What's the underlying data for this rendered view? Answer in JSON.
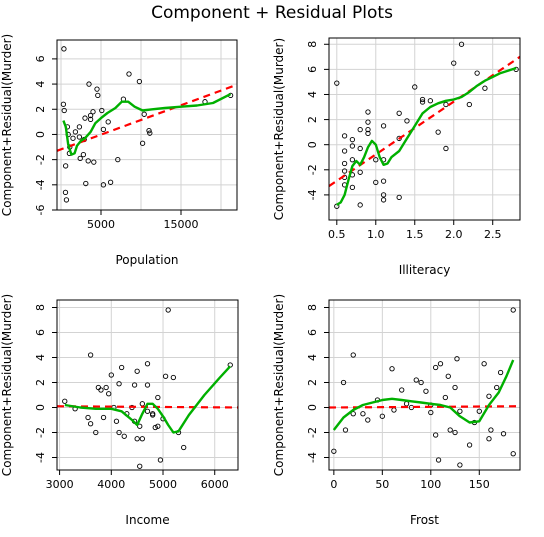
{
  "figure": {
    "title": "Component + Residual Plots"
  },
  "colors": {
    "background": "#ffffff",
    "points": "#000000",
    "grid": "#d3d3d3",
    "fit_line": "#ff0000",
    "smooth_line": "#00b000"
  },
  "chart_data": [
    {
      "type": "scatter",
      "xlabel": "Population",
      "ylabel": "Component+Residual(Murder)",
      "xlim": [
        -500,
        22000
      ],
      "ylim": [
        -6,
        7.5
      ],
      "xticks": [
        5000,
        15000
      ],
      "xtick_labels": [
        "5000",
        "15000"
      ],
      "xgrid": [
        0,
        5000,
        10000,
        15000,
        20000
      ],
      "yticks": [
        -6,
        -4,
        -2,
        0,
        2,
        4,
        6
      ],
      "ytick_labels": [
        "-6",
        "-4",
        "-2",
        "0",
        "2",
        "4",
        "6"
      ],
      "grid": true,
      "points": [
        [
          365,
          6.8
        ],
        [
          560,
          -4.6
        ],
        [
          680,
          -5.2
        ],
        [
          300,
          2.4
        ],
        [
          400,
          1.9
        ],
        [
          800,
          0.6
        ],
        [
          900,
          0.0
        ],
        [
          1100,
          -1.0
        ],
        [
          580,
          -2.5
        ],
        [
          1500,
          -0.3
        ],
        [
          1800,
          0.2
        ],
        [
          1050,
          -1.5
        ],
        [
          2300,
          -0.2
        ],
        [
          2400,
          -1.9
        ],
        [
          2800,
          -1.6
        ],
        [
          2300,
          0.6
        ],
        [
          3000,
          1.3
        ],
        [
          3100,
          -3.9
        ],
        [
          3400,
          -2.1
        ],
        [
          3700,
          1.2
        ],
        [
          2900,
          -0.4
        ],
        [
          3500,
          4.0
        ],
        [
          3700,
          1.5
        ],
        [
          4100,
          -2.2
        ],
        [
          4500,
          3.6
        ],
        [
          4600,
          3.1
        ],
        [
          4000,
          1.8
        ],
        [
          5100,
          1.9
        ],
        [
          5300,
          -4.0
        ],
        [
          5900,
          1.0
        ],
        [
          5300,
          0.4
        ],
        [
          6200,
          -3.8
        ],
        [
          7100,
          -2.0
        ],
        [
          7800,
          2.8
        ],
        [
          8500,
          4.8
        ],
        [
          10200,
          -0.7
        ],
        [
          10400,
          1.6
        ],
        [
          11000,
          0.3
        ],
        [
          11100,
          0.1
        ],
        [
          9800,
          4.2
        ],
        [
          18000,
          2.6
        ],
        [
          21200,
          3.1
        ]
      ],
      "fit": {
        "x": [
          -500,
          22000
        ],
        "y": [
          -1.3,
          3.95
        ]
      },
      "smooth": {
        "x": [
          300,
          600,
          900,
          1300,
          1700,
          2000,
          2500,
          3000,
          3700,
          4300,
          5000,
          5800,
          6800,
          7600,
          8400,
          9200,
          10200,
          11400,
          13000,
          15000,
          17000,
          19000,
          21200
        ],
        "y": [
          1.1,
          0.6,
          -0.8,
          -1.6,
          -1.5,
          -0.9,
          -0.5,
          -0.3,
          0.2,
          0.9,
          1.3,
          1.7,
          2.1,
          2.6,
          2.6,
          2.2,
          1.9,
          2.0,
          2.1,
          2.2,
          2.3,
          2.5,
          3.2
        ]
      }
    },
    {
      "type": "scatter",
      "xlabel": "Illiteracy",
      "ylabel": "Component+Residual(Murder)",
      "xlim": [
        0.4,
        2.85
      ],
      "ylim": [
        -6,
        8.5
      ],
      "xticks": [
        0.5,
        1.0,
        1.5,
        2.0,
        2.5
      ],
      "xtick_labels": [
        "0.5",
        "1.0",
        "1.5",
        "2.0",
        "2.5"
      ],
      "xgrid": [
        0.5,
        1.0,
        1.5,
        2.0,
        2.5
      ],
      "yticks": [
        -4,
        -2,
        0,
        2,
        4,
        6,
        8
      ],
      "ytick_labels": [
        "-4",
        "-2",
        "0",
        "2",
        "4",
        "6",
        "8"
      ],
      "grid": true,
      "points": [
        [
          0.5,
          4.9
        ],
        [
          0.5,
          -4.9
        ],
        [
          0.6,
          0.7
        ],
        [
          0.6,
          -0.5
        ],
        [
          0.6,
          -1.5
        ],
        [
          0.6,
          -2.1
        ],
        [
          0.6,
          -2.6
        ],
        [
          0.6,
          -3.2
        ],
        [
          0.7,
          0.4
        ],
        [
          0.7,
          -0.1
        ],
        [
          0.7,
          -1.2
        ],
        [
          0.7,
          -2.4
        ],
        [
          0.7,
          -3.4
        ],
        [
          0.8,
          1.2
        ],
        [
          0.8,
          -0.3
        ],
        [
          0.8,
          -2.2
        ],
        [
          0.8,
          -4.8
        ],
        [
          0.9,
          1.8
        ],
        [
          0.9,
          2.6
        ],
        [
          0.9,
          1.2
        ],
        [
          0.9,
          0.9
        ],
        [
          1.0,
          -1.2
        ],
        [
          1.0,
          -3.0
        ],
        [
          1.1,
          1.5
        ],
        [
          1.1,
          -1.2
        ],
        [
          1.1,
          -4.0
        ],
        [
          1.1,
          -4.4
        ],
        [
          1.1,
          -2.9
        ],
        [
          1.3,
          0.5
        ],
        [
          1.3,
          -4.2
        ],
        [
          1.3,
          2.5
        ],
        [
          1.4,
          1.9
        ],
        [
          1.5,
          4.6
        ],
        [
          1.6,
          3.6
        ],
        [
          1.6,
          3.4
        ],
        [
          1.7,
          3.5
        ],
        [
          1.8,
          1.0
        ],
        [
          1.9,
          -0.3
        ],
        [
          1.9,
          3.2
        ],
        [
          2.0,
          6.5
        ],
        [
          2.1,
          8.0
        ],
        [
          2.2,
          3.2
        ],
        [
          2.3,
          5.7
        ],
        [
          2.4,
          4.5
        ],
        [
          2.8,
          6.0
        ]
      ],
      "fit": {
        "x": [
          0.4,
          2.85
        ],
        "y": [
          -3.3,
          7.0
        ]
      },
      "smooth": {
        "x": [
          0.5,
          0.55,
          0.6,
          0.65,
          0.7,
          0.75,
          0.8,
          0.85,
          0.9,
          0.95,
          1.0,
          1.05,
          1.1,
          1.15,
          1.2,
          1.3,
          1.4,
          1.5,
          1.6,
          1.7,
          1.8,
          1.9,
          2.0,
          2.1,
          2.2,
          2.3,
          2.4,
          2.5,
          2.6,
          2.7,
          2.8
        ],
        "y": [
          -4.8,
          -4.6,
          -4.0,
          -2.8,
          -1.7,
          -1.3,
          -1.6,
          -1.0,
          -0.2,
          0.3,
          0.0,
          -1.0,
          -1.6,
          -1.5,
          -1.0,
          -0.5,
          0.5,
          1.5,
          2.5,
          3.0,
          3.3,
          3.5,
          3.6,
          3.8,
          4.2,
          4.7,
          5.1,
          5.4,
          5.7,
          5.9,
          6.1
        ]
      }
    },
    {
      "type": "scatter",
      "xlabel": "Income",
      "ylabel": "Component+Residual(Murder)",
      "xlim": [
        2950,
        6450
      ],
      "ylim": [
        -5,
        8.6
      ],
      "xticks": [
        3000,
        4000,
        5000,
        6000
      ],
      "xtick_labels": [
        "3000",
        "4000",
        "5000",
        "6000"
      ],
      "xgrid": [
        3000,
        4000,
        5000,
        6000
      ],
      "yticks": [
        -4,
        -2,
        0,
        2,
        4,
        6,
        8
      ],
      "ytick_labels": [
        "-4",
        "-2",
        "0",
        "2",
        "4",
        "6",
        "8"
      ],
      "grid": true,
      "points": [
        [
          3100,
          0.5
        ],
        [
          3300,
          -0.1
        ],
        [
          3550,
          -0.8
        ],
        [
          3600,
          4.2
        ],
        [
          3600,
          -1.3
        ],
        [
          3700,
          -2.0
        ],
        [
          3750,
          1.6
        ],
        [
          3800,
          1.4
        ],
        [
          3850,
          -0.8
        ],
        [
          3900,
          1.6
        ],
        [
          3950,
          1.1
        ],
        [
          4000,
          2.6
        ],
        [
          4050,
          0.0
        ],
        [
          4100,
          -1.1
        ],
        [
          4150,
          -2.0
        ],
        [
          4150,
          1.9
        ],
        [
          4200,
          3.2
        ],
        [
          4250,
          -2.3
        ],
        [
          4300,
          -0.5
        ],
        [
          4400,
          0.0
        ],
        [
          4450,
          1.8
        ],
        [
          4450,
          -1.1
        ],
        [
          4500,
          2.9
        ],
        [
          4500,
          -2.5
        ],
        [
          4550,
          -4.7
        ],
        [
          4550,
          -1.5
        ],
        [
          4600,
          -2.5
        ],
        [
          4600,
          0.3
        ],
        [
          4700,
          1.8
        ],
        [
          4700,
          -0.3
        ],
        [
          4800,
          -0.5
        ],
        [
          4800,
          -0.6
        ],
        [
          4700,
          3.5
        ],
        [
          4850,
          -1.6
        ],
        [
          4900,
          0.8
        ],
        [
          4900,
          -1.5
        ],
        [
          4950,
          -4.2
        ],
        [
          5000,
          -0.9
        ],
        [
          5050,
          2.5
        ],
        [
          5100,
          7.8
        ],
        [
          5200,
          2.4
        ],
        [
          5300,
          -2.0
        ],
        [
          5400,
          -3.2
        ],
        [
          6300,
          3.4
        ]
      ],
      "fit": {
        "x": [
          2950,
          6450
        ],
        "y": [
          0.1,
          0.0
        ]
      },
      "smooth": {
        "x": [
          3100,
          3400,
          3700,
          4000,
          4200,
          4400,
          4500,
          4600,
          4700,
          4800,
          4900,
          5000,
          5100,
          5200,
          5300,
          5500,
          5800,
          6100,
          6300
        ],
        "y": [
          0.2,
          0.0,
          -0.1,
          -0.1,
          -0.3,
          -1.0,
          -1.4,
          -0.5,
          0.3,
          0.3,
          -0.1,
          -0.7,
          -1.4,
          -2.0,
          -1.9,
          -0.6,
          1.0,
          2.4,
          3.3
        ]
      }
    },
    {
      "type": "scatter",
      "xlabel": "Frost",
      "ylabel": "Component+Residual(Murder)",
      "xlim": [
        -5,
        192
      ],
      "ylim": [
        -5,
        8.6
      ],
      "xticks": [
        0,
        50,
        100,
        150
      ],
      "xtick_labels": [
        "0",
        "50",
        "100",
        "150"
      ],
      "xgrid": [
        0,
        50,
        100,
        150
      ],
      "yticks": [
        -4,
        -2,
        0,
        2,
        4,
        6,
        8
      ],
      "ytick_labels": [
        "-4",
        "-2",
        "0",
        "2",
        "4",
        "6",
        "8"
      ],
      "grid": true,
      "points": [
        [
          0,
          -3.5
        ],
        [
          10,
          2.0
        ],
        [
          12,
          -1.8
        ],
        [
          20,
          4.2
        ],
        [
          20,
          -0.5
        ],
        [
          30,
          -0.5
        ],
        [
          35,
          -1.0
        ],
        [
          45,
          0.6
        ],
        [
          50,
          -0.7
        ],
        [
          60,
          3.1
        ],
        [
          62,
          -0.2
        ],
        [
          70,
          1.4
        ],
        [
          75,
          0.3
        ],
        [
          80,
          0.0
        ],
        [
          85,
          2.2
        ],
        [
          90,
          2.0
        ],
        [
          95,
          1.3
        ],
        [
          100,
          0.2
        ],
        [
          100,
          -0.4
        ],
        [
          105,
          3.2
        ],
        [
          105,
          -2.2
        ],
        [
          108,
          -4.2
        ],
        [
          110,
          3.5
        ],
        [
          115,
          0.8
        ],
        [
          118,
          2.5
        ],
        [
          120,
          -1.8
        ],
        [
          125,
          1.6
        ],
        [
          125,
          -2.0
        ],
        [
          127,
          3.9
        ],
        [
          130,
          -0.3
        ],
        [
          130,
          -4.6
        ],
        [
          140,
          -3.0
        ],
        [
          145,
          -1.2
        ],
        [
          150,
          -0.3
        ],
        [
          155,
          3.5
        ],
        [
          160,
          -2.5
        ],
        [
          160,
          0.9
        ],
        [
          162,
          -1.8
        ],
        [
          168,
          1.6
        ],
        [
          172,
          2.8
        ],
        [
          175,
          -2.1
        ],
        [
          185,
          7.8
        ],
        [
          185,
          -3.7
        ]
      ],
      "fit": {
        "x": [
          -5,
          192
        ],
        "y": [
          0.0,
          0.1
        ]
      },
      "smooth": {
        "x": [
          0,
          10,
          20,
          30,
          40,
          50,
          60,
          70,
          80,
          90,
          100,
          110,
          120,
          130,
          140,
          150,
          160,
          170,
          178,
          185
        ],
        "y": [
          -1.8,
          -0.8,
          -0.2,
          0.2,
          0.4,
          0.6,
          0.7,
          0.6,
          0.5,
          0.4,
          0.3,
          0.2,
          0.0,
          -0.7,
          -1.2,
          -1.1,
          0.2,
          1.2,
          2.5,
          3.8
        ]
      }
    }
  ]
}
